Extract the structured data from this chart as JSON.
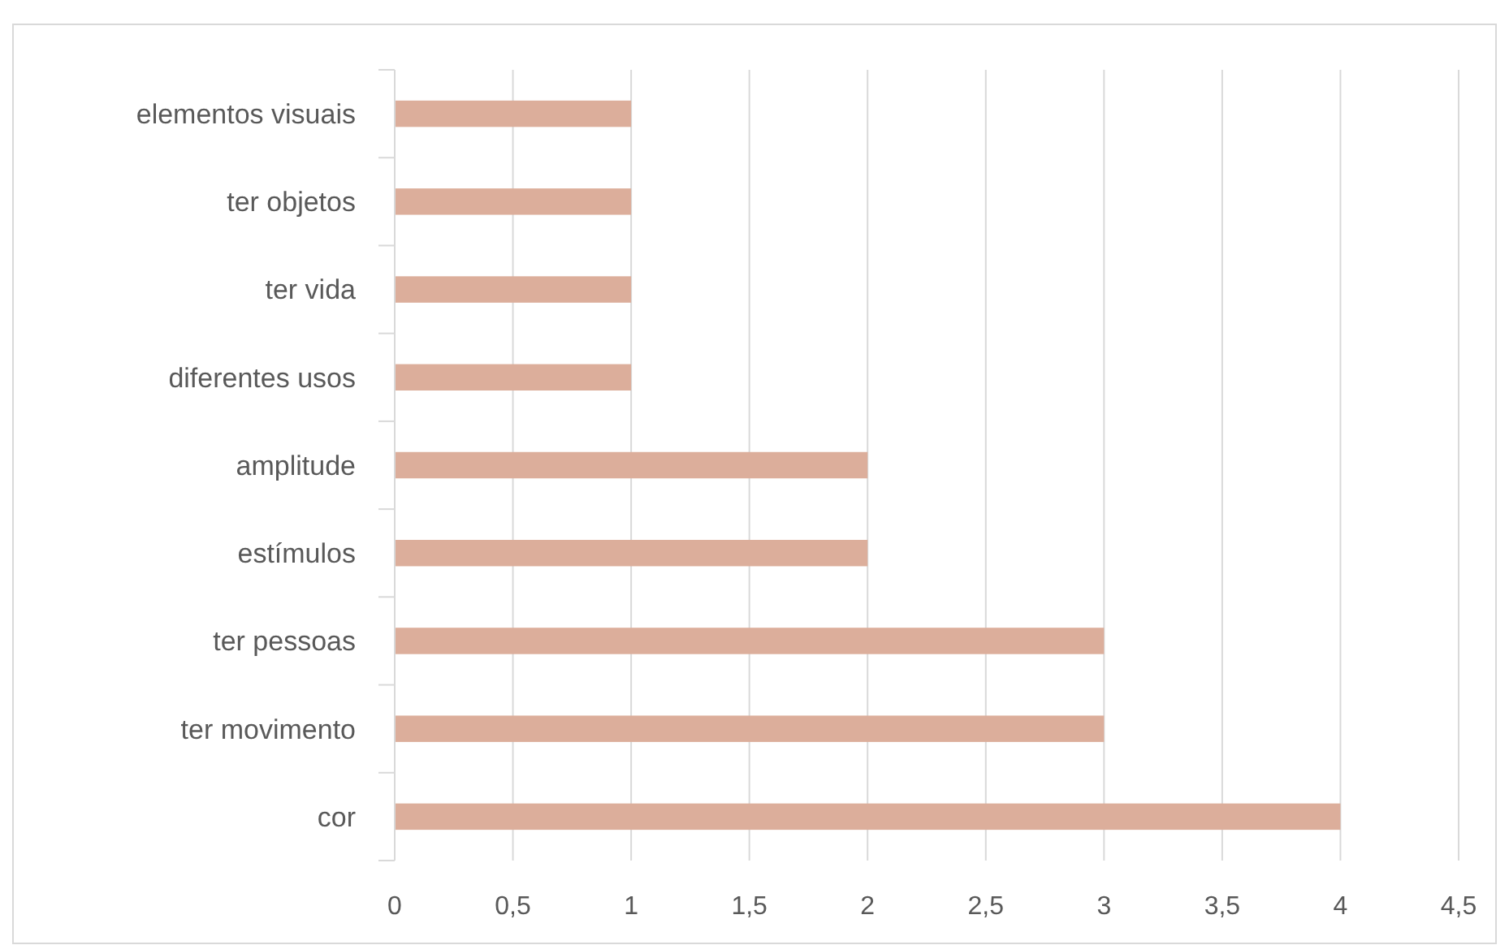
{
  "chart_data": {
    "type": "bar",
    "orientation": "horizontal",
    "categories": [
      "elementos visuais",
      "ter objetos",
      "ter vida",
      "diferentes usos",
      "amplitude",
      "estímulos",
      "ter pessoas",
      "ter movimento",
      "cor"
    ],
    "values": [
      1,
      1,
      1,
      1,
      2,
      2,
      3,
      3,
      4
    ],
    "color": "#dcae9b",
    "xlim": [
      0,
      4.5
    ],
    "xticks": [
      0,
      {
        "value": 0.5,
        "label": "0,5"
      },
      1,
      {
        "value": 1.5,
        "label": "1,5"
      },
      2,
      {
        "value": 2.5,
        "label": "2,5"
      },
      3,
      {
        "value": 3.5,
        "label": "3,5"
      },
      4,
      {
        "value": 4.5,
        "label": "4,5"
      }
    ],
    "grid": "x"
  }
}
